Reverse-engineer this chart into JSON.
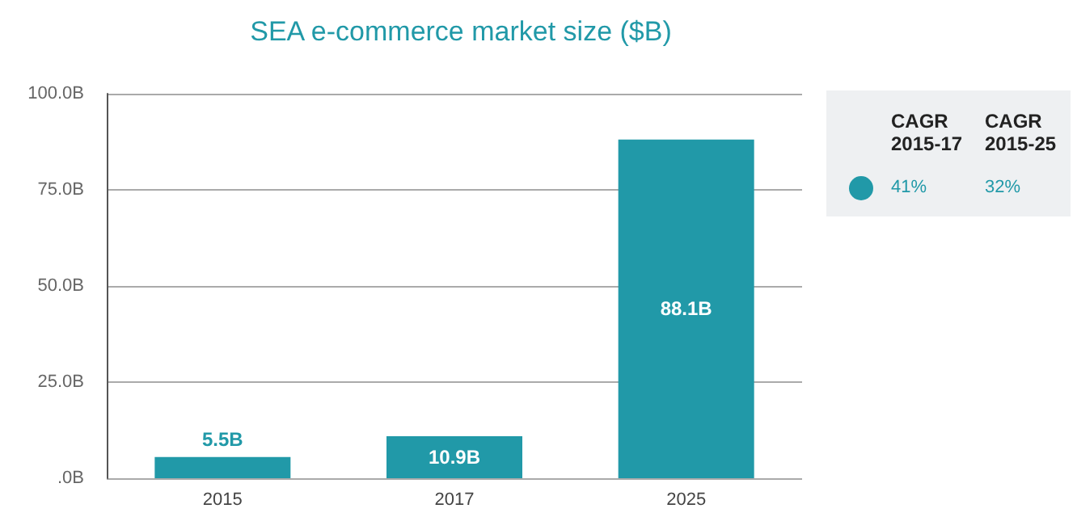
{
  "chart_data": {
    "type": "bar",
    "title": "SEA e-commerce market size ($B)",
    "categories": [
      "2015",
      "2017",
      "2025"
    ],
    "values": [
      5.5,
      10.9,
      88.1
    ],
    "color": "#2199a8",
    "value_labels": [
      "5.5B",
      "10.9B",
      "88.1B"
    ],
    "ylim": [
      0,
      100
    ],
    "yticks": [
      {
        "value": 0,
        "label": ".0B"
      },
      {
        "value": 25,
        "label": "25.0B"
      },
      {
        "value": 50,
        "label": "50.0B"
      },
      {
        "value": 75,
        "label": "75.0B"
      },
      {
        "value": 100,
        "label": "100.0B"
      }
    ],
    "grid": "y",
    "annotations": [
      "CAGR 2015-17",
      "CAGR 2015-25",
      "41%",
      "32%"
    ]
  }
}
